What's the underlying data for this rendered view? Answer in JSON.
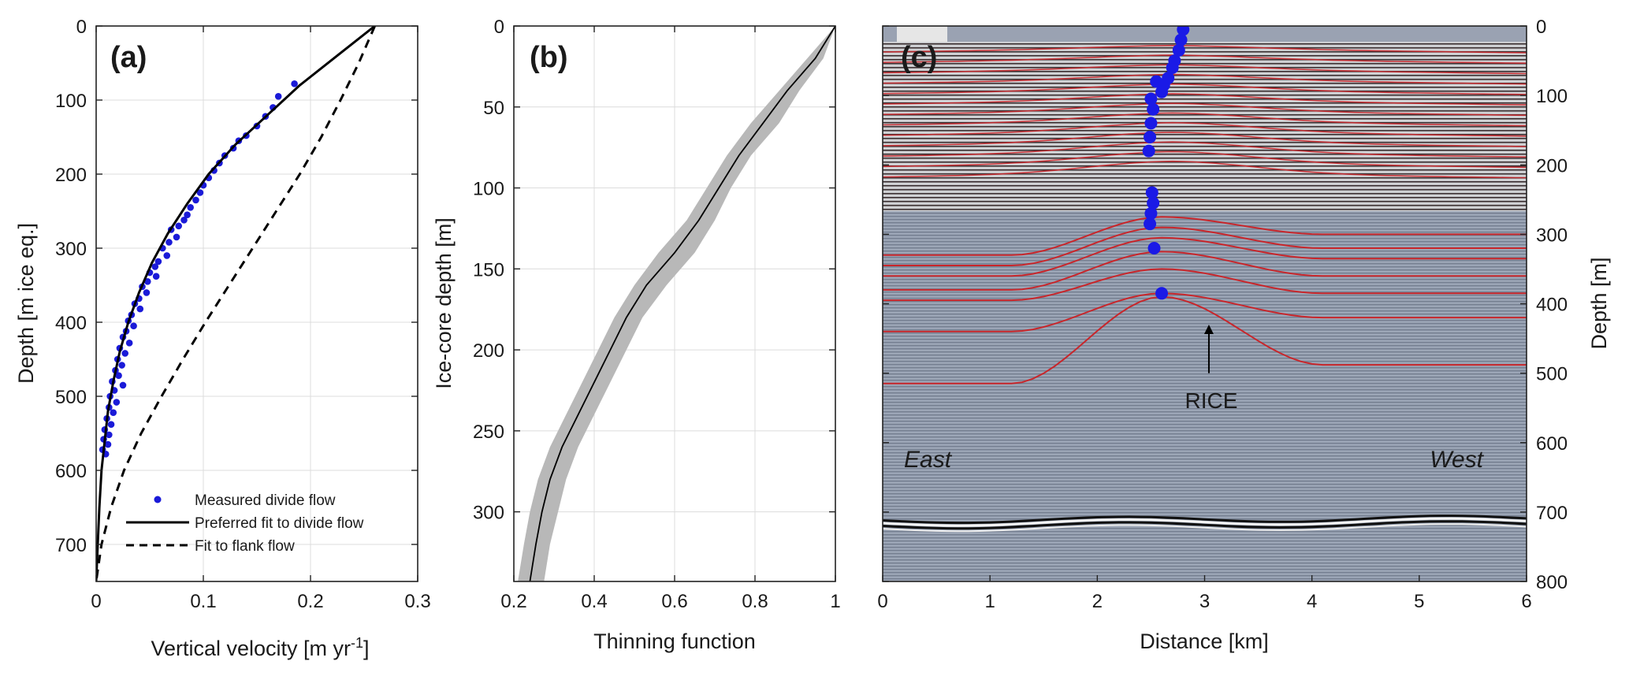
{
  "chart_data": [
    {
      "panel": "a",
      "type": "scatter",
      "panel_label": "(a)",
      "xlabel": "Vertical velocity [m yr",
      "xlabel_sup": "-1",
      "xlabel_end": "]",
      "ylabel": "Depth [m ice eq.]",
      "xlim": [
        0,
        0.3
      ],
      "ylim": [
        750,
        0
      ],
      "xticks": [
        0,
        0.1,
        0.2,
        0.3
      ],
      "yticks": [
        0,
        100,
        200,
        300,
        400,
        500,
        600,
        700
      ],
      "grid": true,
      "legend_position": "bottom-center",
      "series": [
        {
          "name": "Measured divide flow",
          "style": "points",
          "color": "#1a1ad8",
          "points": [
            [
              0.185,
              78
            ],
            [
              0.17,
              95
            ],
            [
              0.165,
              110
            ],
            [
              0.158,
              122
            ],
            [
              0.15,
              135
            ],
            [
              0.14,
              148
            ],
            [
              0.133,
              155
            ],
            [
              0.128,
              165
            ],
            [
              0.12,
              175
            ],
            [
              0.115,
              185
            ],
            [
              0.11,
              195
            ],
            [
              0.105,
              205
            ],
            [
              0.1,
              215
            ],
            [
              0.097,
              225
            ],
            [
              0.093,
              235
            ],
            [
              0.088,
              245
            ],
            [
              0.085,
              255
            ],
            [
              0.082,
              262
            ],
            [
              0.077,
              270
            ],
            [
              0.07,
              275
            ],
            [
              0.075,
              285
            ],
            [
              0.068,
              292
            ],
            [
              0.062,
              300
            ],
            [
              0.066,
              310
            ],
            [
              0.058,
              318
            ],
            [
              0.055,
              325
            ],
            [
              0.05,
              333
            ],
            [
              0.056,
              338
            ],
            [
              0.048,
              345
            ],
            [
              0.043,
              352
            ],
            [
              0.047,
              360
            ],
            [
              0.04,
              368
            ],
            [
              0.036,
              375
            ],
            [
              0.041,
              382
            ],
            [
              0.033,
              390
            ],
            [
              0.03,
              398
            ],
            [
              0.035,
              405
            ],
            [
              0.028,
              412
            ],
            [
              0.025,
              420
            ],
            [
              0.031,
              428
            ],
            [
              0.022,
              435
            ],
            [
              0.027,
              442
            ],
            [
              0.02,
              450
            ],
            [
              0.024,
              458
            ],
            [
              0.018,
              465
            ],
            [
              0.021,
              472
            ],
            [
              0.015,
              480
            ],
            [
              0.025,
              485
            ],
            [
              0.017,
              492
            ],
            [
              0.013,
              500
            ],
            [
              0.019,
              508
            ],
            [
              0.012,
              515
            ],
            [
              0.016,
              522
            ],
            [
              0.01,
              530
            ],
            [
              0.014,
              538
            ],
            [
              0.008,
              545
            ],
            [
              0.012,
              552
            ],
            [
              0.007,
              558
            ],
            [
              0.011,
              565
            ],
            [
              0.006,
              572
            ],
            [
              0.009,
              578
            ]
          ]
        },
        {
          "name": "Preferred fit to divide flow",
          "style": "solid",
          "color": "#000000",
          "points": [
            [
              0.26,
              0
            ],
            [
              0.225,
              40
            ],
            [
              0.19,
              80
            ],
            [
              0.16,
              120
            ],
            [
              0.13,
              160
            ],
            [
              0.105,
              200
            ],
            [
              0.085,
              240
            ],
            [
              0.067,
              280
            ],
            [
              0.052,
              320
            ],
            [
              0.04,
              360
            ],
            [
              0.03,
              400
            ],
            [
              0.022,
              440
            ],
            [
              0.016,
              480
            ],
            [
              0.011,
              520
            ],
            [
              0.008,
              560
            ],
            [
              0.005,
              600
            ],
            [
              0.003,
              650
            ],
            [
              0.0015,
              700
            ],
            [
              0,
              750
            ]
          ]
        },
        {
          "name": "Fit to flank flow",
          "style": "dashed",
          "color": "#000000",
          "points": [
            [
              0.26,
              0
            ],
            [
              0.245,
              50
            ],
            [
              0.228,
              100
            ],
            [
              0.21,
              150
            ],
            [
              0.19,
              200
            ],
            [
              0.168,
              250
            ],
            [
              0.146,
              300
            ],
            [
              0.124,
              350
            ],
            [
              0.102,
              400
            ],
            [
              0.081,
              450
            ],
            [
              0.061,
              500
            ],
            [
              0.042,
              550
            ],
            [
              0.026,
              600
            ],
            [
              0.014,
              650
            ],
            [
              0.005,
              700
            ],
            [
              0,
              750
            ]
          ]
        }
      ]
    },
    {
      "panel": "b",
      "type": "line",
      "panel_label": "(b)",
      "xlabel": "Thinning function",
      "ylabel": "Ice-core depth [m]",
      "xlim": [
        0.2,
        1
      ],
      "ylim": [
        343,
        0
      ],
      "xticks": [
        0.2,
        0.4,
        0.6,
        0.8,
        1
      ],
      "yticks": [
        0,
        50,
        100,
        150,
        200,
        250,
        300
      ],
      "grid": true,
      "series": [
        {
          "name": "Thinning function",
          "style": "solid",
          "color": "#000000",
          "points": [
            [
              1,
              0
            ],
            [
              0.95,
              20
            ],
            [
              0.88,
              40
            ],
            [
              0.82,
              60
            ],
            [
              0.76,
              80
            ],
            [
              0.71,
              100
            ],
            [
              0.66,
              120
            ],
            [
              0.6,
              140
            ],
            [
              0.53,
              160
            ],
            [
              0.48,
              180
            ],
            [
              0.44,
              200
            ],
            [
              0.4,
              220
            ],
            [
              0.36,
              240
            ],
            [
              0.32,
              260
            ],
            [
              0.29,
              280
            ],
            [
              0.27,
              300
            ],
            [
              0.255,
              320
            ],
            [
              0.24,
              343
            ]
          ]
        },
        {
          "name": "Uncertainty band",
          "style": "band",
          "color": "#b8b8b8",
          "lower": [
            [
              1,
              0
            ],
            [
              0.93,
              20
            ],
            [
              0.86,
              40
            ],
            [
              0.79,
              60
            ],
            [
              0.73,
              80
            ],
            [
              0.68,
              100
            ],
            [
              0.63,
              120
            ],
            [
              0.56,
              140
            ],
            [
              0.5,
              160
            ],
            [
              0.45,
              180
            ],
            [
              0.41,
              200
            ],
            [
              0.37,
              220
            ],
            [
              0.33,
              240
            ],
            [
              0.29,
              260
            ],
            [
              0.26,
              280
            ],
            [
              0.24,
              300
            ],
            [
              0.225,
              320
            ],
            [
              0.21,
              343
            ]
          ],
          "upper": [
            [
              1,
              0
            ],
            [
              0.97,
              20
            ],
            [
              0.91,
              40
            ],
            [
              0.86,
              60
            ],
            [
              0.79,
              80
            ],
            [
              0.74,
              100
            ],
            [
              0.7,
              120
            ],
            [
              0.65,
              140
            ],
            [
              0.58,
              160
            ],
            [
              0.52,
              180
            ],
            [
              0.48,
              200
            ],
            [
              0.44,
              220
            ],
            [
              0.4,
              240
            ],
            [
              0.36,
              260
            ],
            [
              0.33,
              280
            ],
            [
              0.31,
              300
            ],
            [
              0.29,
              320
            ],
            [
              0.275,
              343
            ]
          ]
        }
      ]
    },
    {
      "panel": "c",
      "type": "radargram",
      "panel_label": "(c)",
      "xlabel": "Distance [km]",
      "ylabel": "Depth [m]",
      "xlim": [
        0,
        6
      ],
      "ylim": [
        800,
        0
      ],
      "xticks": [
        0,
        1,
        2,
        3,
        4,
        5,
        6
      ],
      "yticks": [
        0,
        100,
        200,
        300,
        400,
        500,
        600,
        700,
        800
      ],
      "annotations": {
        "east": "East",
        "west": "West",
        "site": "RICE",
        "site_x_km": 3.04,
        "arrow_tip_depth": 430,
        "arrow_base_depth": 500
      },
      "bed_depth": 718,
      "background_color": "#8a94a6",
      "layer_color": "#c8262b",
      "upper_layers": [
        20,
        35,
        50,
        65,
        80,
        95,
        110,
        125,
        140,
        155,
        170,
        185,
        200
      ],
      "deep_layers": [
        {
          "left": 330,
          "crest": 275,
          "right": 300
        },
        {
          "left": 345,
          "crest": 290,
          "right": 320
        },
        {
          "left": 360,
          "crest": 305,
          "right": 335
        },
        {
          "left": 380,
          "crest": 325,
          "right": 360
        },
        {
          "left": 395,
          "crest": 350,
          "right": 385
        },
        {
          "left": 440,
          "crest": 385,
          "right": 420
        },
        {
          "left": 515,
          "crest": 390,
          "right": 488
        }
      ],
      "flow_markers": [
        [
          2.8,
          5
        ],
        [
          2.78,
          20
        ],
        [
          2.76,
          35
        ],
        [
          2.72,
          50
        ],
        [
          2.7,
          60
        ],
        [
          2.66,
          75
        ],
        [
          2.62,
          85
        ],
        [
          2.6,
          95
        ],
        [
          2.55,
          80
        ],
        [
          2.5,
          105
        ],
        [
          2.52,
          120
        ],
        [
          2.5,
          140
        ],
        [
          2.49,
          160
        ],
        [
          2.48,
          180
        ],
        [
          2.51,
          240
        ],
        [
          2.52,
          255
        ],
        [
          2.5,
          270
        ],
        [
          2.49,
          285
        ],
        [
          2.53,
          320
        ],
        [
          2.6,
          385
        ]
      ]
    }
  ],
  "legend": {
    "measured": "Measured divide flow",
    "preferred": "Preferred fit to divide flow",
    "flank": "Fit to flank flow"
  }
}
